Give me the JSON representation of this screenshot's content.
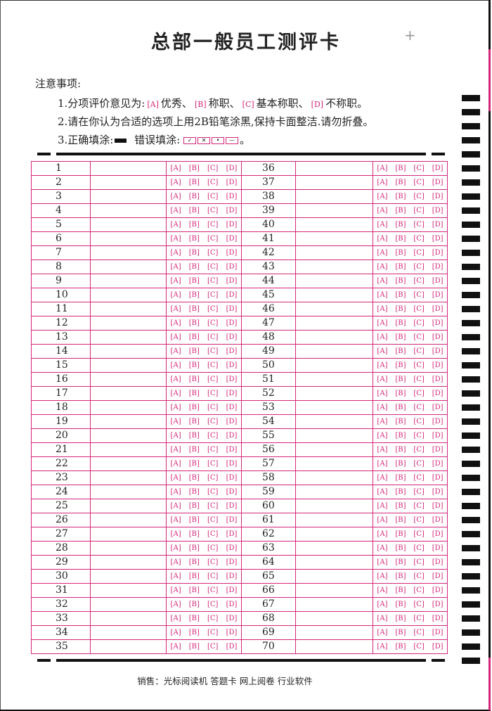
{
  "title": "总部一般员工测评卡",
  "notes": {
    "heading": "注意事项:",
    "line1": {
      "prefix": "1.分项评价意见为:",
      "a": "A",
      "a_text": "优秀、",
      "b": "B",
      "b_text": "称职、",
      "c": "C",
      "c_text": "基本称职、",
      "d": "D",
      "d_text": "不称职。"
    },
    "line2": "2.请在你认为合适的选项上用2B铅笔涂黑,保持卡面整洁.请勿折叠。",
    "line3": {
      "correct": "3.正确填涂:",
      "wrong": "错误填涂:",
      "wrong_marks": [
        "✓",
        "✕",
        "•",
        "—"
      ],
      "end": "。"
    }
  },
  "options": [
    "A",
    "B",
    "C",
    "D"
  ],
  "left_numbers": [
    1,
    2,
    3,
    4,
    5,
    6,
    7,
    8,
    9,
    10,
    11,
    12,
    13,
    14,
    15,
    16,
    17,
    18,
    19,
    20,
    21,
    22,
    23,
    24,
    25,
    26,
    27,
    28,
    29,
    30,
    31,
    32,
    33,
    34,
    35
  ],
  "right_numbers": [
    36,
    37,
    38,
    39,
    40,
    41,
    42,
    43,
    44,
    45,
    46,
    47,
    48,
    49,
    50,
    51,
    52,
    53,
    54,
    55,
    56,
    57,
    58,
    59,
    60,
    61,
    62,
    63,
    64,
    65,
    66,
    67,
    68,
    69,
    70
  ],
  "footer": "销售：光标阅读机  答题卡  网上阅卷  行业软件",
  "colors": {
    "accent": "#d4267a",
    "ink": "#111111"
  }
}
